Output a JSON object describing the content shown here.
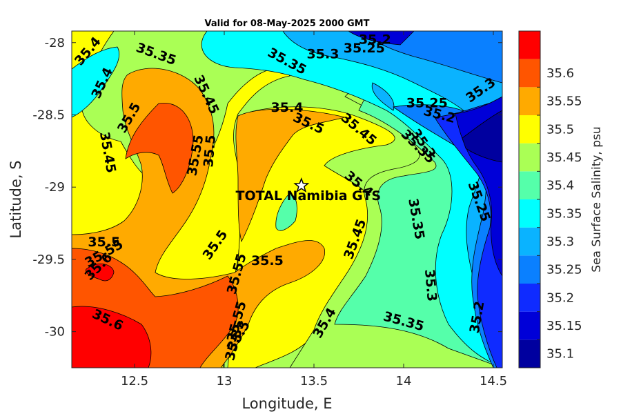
{
  "chart_data": {
    "type": "heatmap",
    "subtype": "filled-contour-map",
    "title": "Valid for 08-May-2025 2000 GMT",
    "xlabel": "Longitude, E",
    "ylabel": "Latitude, S",
    "xlim": [
      12.15,
      14.55
    ],
    "ylim": [
      -30.25,
      -27.92
    ],
    "xticks": [
      12.5,
      13,
      13.5,
      14,
      14.5
    ],
    "xtick_labels": [
      "12.5",
      "13",
      "13.5",
      "14",
      "14.5"
    ],
    "yticks": [
      -28,
      -28.5,
      -29,
      -29.5,
      -30
    ],
    "ytick_labels": [
      "-28",
      "-28.5",
      "-29",
      "-29.5",
      "-30"
    ],
    "colorbar": {
      "label": "Sea Surface Salinity, psu",
      "levels": [
        35.1,
        35.15,
        35.2,
        35.25,
        35.3,
        35.35,
        35.4,
        35.45,
        35.5,
        35.55,
        35.6,
        35.65
      ],
      "tick_labels": [
        "35.1",
        "35.15",
        "35.2",
        "35.25",
        "35.3",
        "35.35",
        "35.4",
        "35.45",
        "35.5",
        "35.55",
        "35.6"
      ],
      "colors": [
        "#00009f",
        "#0000d8",
        "#0f2bff",
        "#0a80ff",
        "#0ab3ff",
        "#00ffff",
        "#55ffaa",
        "#aaff55",
        "#ffff00",
        "#ffaa00",
        "#ff5500",
        "#ff0000"
      ]
    },
    "contour_labels": [
      {
        "text": "35.4",
        "lon": 12.24,
        "lat": -28.06,
        "angle": -50
      },
      {
        "text": "35.35",
        "lon": 12.62,
        "lat": -28.08,
        "angle": 20
      },
      {
        "text": "35.4",
        "lon": 12.32,
        "lat": -28.28,
        "angle": -65
      },
      {
        "text": "35.35",
        "lon": 13.35,
        "lat": -28.13,
        "angle": 28
      },
      {
        "text": "35.3",
        "lon": 13.55,
        "lat": -28.08,
        "angle": 0
      },
      {
        "text": "35.25",
        "lon": 13.78,
        "lat": -28.04,
        "angle": 0
      },
      {
        "text": "35.2",
        "lon": 13.84,
        "lat": -27.98,
        "angle": 0
      },
      {
        "text": "35.45",
        "lon": 12.9,
        "lat": -28.36,
        "angle": 65
      },
      {
        "text": "35.5",
        "lon": 12.47,
        "lat": -28.52,
        "angle": -60
      },
      {
        "text": "35.4",
        "lon": 13.35,
        "lat": -28.45,
        "angle": 0
      },
      {
        "text": "35.5",
        "lon": 13.47,
        "lat": -28.56,
        "angle": 25
      },
      {
        "text": "35.45",
        "lon": 13.75,
        "lat": -28.6,
        "angle": 40
      },
      {
        "text": "35.25",
        "lon": 14.13,
        "lat": -28.42,
        "angle": 0
      },
      {
        "text": "35.2",
        "lon": 14.2,
        "lat": -28.5,
        "angle": 15
      },
      {
        "text": "35.3",
        "lon": 14.43,
        "lat": -28.33,
        "angle": -35
      },
      {
        "text": "35.45",
        "lon": 12.35,
        "lat": -28.76,
        "angle": 80
      },
      {
        "text": "35.55",
        "lon": 12.84,
        "lat": -28.78,
        "angle": -80
      },
      {
        "text": "35.5",
        "lon": 12.92,
        "lat": -28.75,
        "angle": -85
      },
      {
        "text": "35.35",
        "lon": 14.08,
        "lat": -28.72,
        "angle": 45
      },
      {
        "text": "35.3",
        "lon": 14.11,
        "lat": -28.7,
        "angle": 55
      },
      {
        "text": "35.4",
        "lon": 13.75,
        "lat": -28.98,
        "angle": 40
      },
      {
        "text": "35.25",
        "lon": 14.42,
        "lat": -29.1,
        "angle": 70
      },
      {
        "text": "35.35",
        "lon": 14.07,
        "lat": -29.22,
        "angle": 80
      },
      {
        "text": "35.5",
        "lon": 12.33,
        "lat": -29.38,
        "angle": 0
      },
      {
        "text": "35.55",
        "lon": 12.33,
        "lat": -29.46,
        "angle": -30
      },
      {
        "text": "35.6",
        "lon": 12.3,
        "lat": -29.55,
        "angle": -45
      },
      {
        "text": "35.5",
        "lon": 12.95,
        "lat": -29.4,
        "angle": -55
      },
      {
        "text": "35.5",
        "lon": 13.24,
        "lat": -29.51,
        "angle": 0
      },
      {
        "text": "35.45",
        "lon": 13.73,
        "lat": -29.36,
        "angle": -70
      },
      {
        "text": "35.55",
        "lon": 13.07,
        "lat": -29.6,
        "angle": -75
      },
      {
        "text": "35.3",
        "lon": 14.15,
        "lat": -29.68,
        "angle": 85
      },
      {
        "text": "35.2",
        "lon": 14.41,
        "lat": -29.9,
        "angle": -80
      },
      {
        "text": "35.6",
        "lon": 12.35,
        "lat": -29.92,
        "angle": 25
      },
      {
        "text": "35.55",
        "lon": 13.07,
        "lat": -29.93,
        "angle": -75
      },
      {
        "text": "35.5",
        "lon": 13.08,
        "lat": -30.03,
        "angle": -60
      },
      {
        "text": "35.35",
        "lon": 13.06,
        "lat": -30.06,
        "angle": -75
      },
      {
        "text": "35.4",
        "lon": 13.56,
        "lat": -29.94,
        "angle": -60
      },
      {
        "text": "35.35",
        "lon": 14.0,
        "lat": -29.93,
        "angle": 15
      }
    ],
    "marker": {
      "label": "TOTAL Namibia GTS",
      "lon": 13.43,
      "lat": -28.99,
      "symbol": "star"
    }
  }
}
